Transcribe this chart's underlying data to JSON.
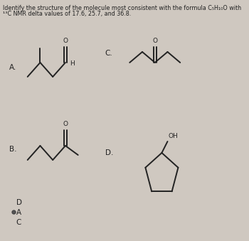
{
  "title_line1": "Identify the structure of the molecule most consistent with the formula C₅H₁₀O with",
  "title_line2": "¹³C NMR delta values of 17.6, 25.7, and 36.8.",
  "bg_color": "#cfc8c0",
  "text_color": "#222222",
  "label_A": "A.",
  "label_B": "B.",
  "label_C": "C.",
  "label_D": "D.",
  "fig_width": 3.5,
  "fig_height": 3.39,
  "dpi": 100,
  "answer_D": "D",
  "answer_A": "A",
  "answer_C": "C"
}
